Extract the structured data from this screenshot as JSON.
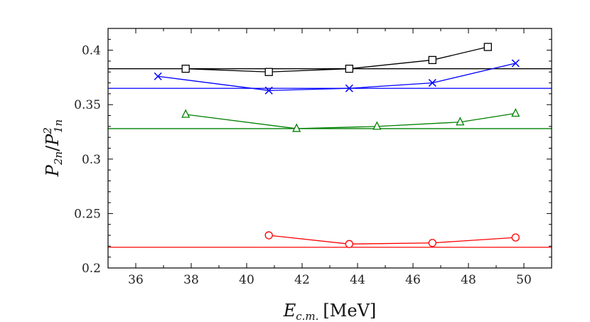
{
  "chart_data": {
    "type": "line",
    "xlabel": "E",
    "xlabel_sub": "c.m.",
    "xlabel_unit": "[MeV]",
    "ylabel_num": "P",
    "ylabel_num_sub": "2n",
    "ylabel_den": "P",
    "ylabel_den_sub": "1n",
    "ylabel_den_sup": "2",
    "xlim": [
      35,
      51
    ],
    "ylim": [
      0.2,
      0.42
    ],
    "xticks": [
      36,
      38,
      40,
      42,
      44,
      46,
      48,
      50
    ],
    "yticks": [
      0.2,
      0.25,
      0.3,
      0.35,
      0.4
    ],
    "xtick_labels": [
      "36",
      "38",
      "40",
      "42",
      "44",
      "46",
      "48",
      "50"
    ],
    "ytick_labels": [
      "0.2",
      "0.25",
      "0.3",
      "0.35",
      "0.4"
    ],
    "grid": false,
    "legend": "none",
    "series": [
      {
        "color": "#000000",
        "marker": "square",
        "x": [
          37.8,
          40.8,
          43.7,
          46.7,
          48.7
        ],
        "y": [
          0.383,
          0.38,
          0.383,
          0.391,
          0.403
        ],
        "reference_y": 0.383
      },
      {
        "color": "#0000ff",
        "marker": "cross",
        "x": [
          36.8,
          40.8,
          43.7,
          46.7,
          49.7
        ],
        "y": [
          0.376,
          0.363,
          0.365,
          0.37,
          0.388
        ],
        "reference_y": 0.365
      },
      {
        "color": "#008000",
        "marker": "triangle",
        "x": [
          37.8,
          41.8,
          44.7,
          47.7,
          49.7
        ],
        "y": [
          0.341,
          0.328,
          0.33,
          0.334,
          0.342
        ],
        "reference_y": 0.328
      },
      {
        "color": "#ff0000",
        "marker": "circle",
        "x": [
          40.8,
          43.7,
          46.7,
          49.7
        ],
        "y": [
          0.23,
          0.222,
          0.223,
          0.228
        ],
        "reference_y": 0.219
      }
    ]
  }
}
